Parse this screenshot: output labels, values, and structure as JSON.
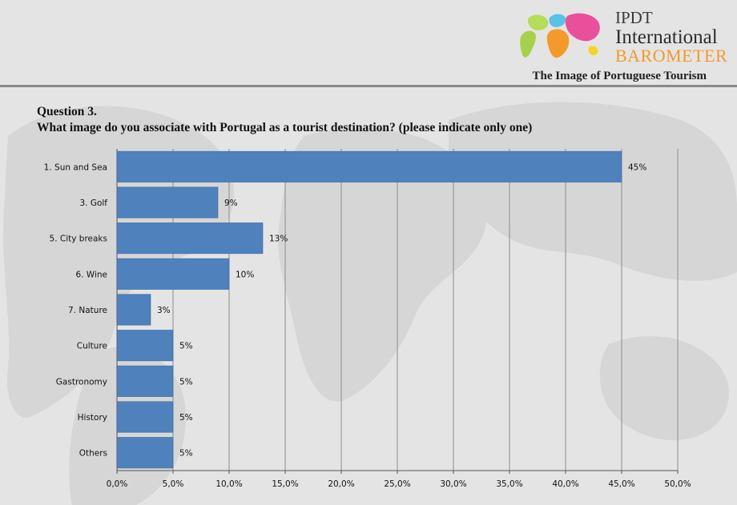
{
  "header": {
    "brand_line1": "IPDT",
    "brand_line2": "International",
    "brand_line3": "BAROMETER",
    "subtitle": "The Image of Portuguese Tourism"
  },
  "question": {
    "number": "Question 3.",
    "text": "What image do you associate with Portugal as a tourist destination? (please indicate only one)"
  },
  "colors": {
    "bar": "#4f81bd",
    "bar_edge": "#3b679c",
    "grid": "#8c8c8c",
    "brand_accent": "#f49a2a"
  },
  "chart_data": {
    "type": "bar",
    "orientation": "horizontal",
    "categories": [
      "1.  Sun and Sea",
      "3.  Golf",
      "5.  City breaks",
      "6.  Wine",
      "7.  Nature",
      "Culture",
      "Gastronomy",
      "History",
      "Others"
    ],
    "values": [
      45,
      9,
      13,
      10,
      3,
      5,
      5,
      5,
      5
    ],
    "data_labels": [
      "45%",
      "9%",
      "13%",
      "10%",
      "3%",
      "5%",
      "5%",
      "5%",
      "5%"
    ],
    "xlim": [
      0,
      50
    ],
    "xticks": [
      0,
      5,
      10,
      15,
      20,
      25,
      30,
      35,
      40,
      45,
      50
    ],
    "xtick_labels": [
      "0,0%",
      "5,0%",
      "10,0%",
      "15,0%",
      "20,0%",
      "25,0%",
      "30,0%",
      "35,0%",
      "40,0%",
      "45,0%",
      "50,0%"
    ],
    "grid": true,
    "legend": "none",
    "title": "",
    "xlabel": "",
    "ylabel": ""
  }
}
